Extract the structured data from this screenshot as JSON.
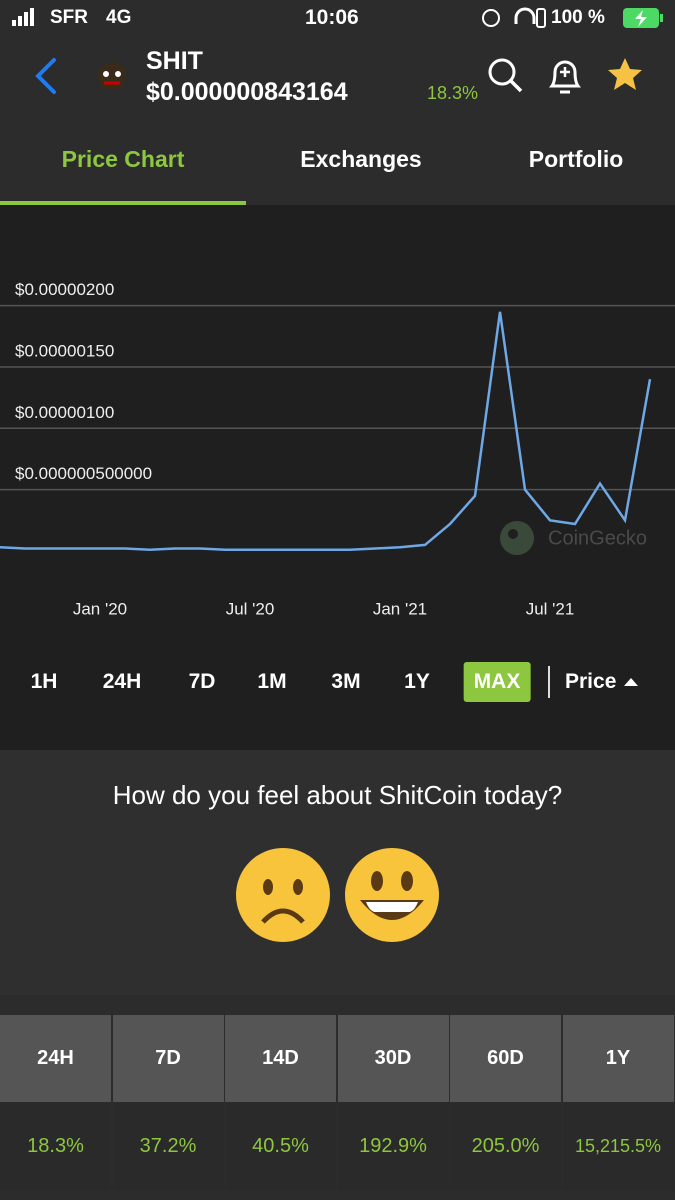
{
  "status_bar": {
    "carrier": "SFR",
    "network": "4G",
    "time": "10:06",
    "battery": "100 %"
  },
  "header": {
    "symbol": "SHIT",
    "price": "$0.000000843164",
    "change": "18.3%"
  },
  "tabs": [
    "Price Chart",
    "Exchanges",
    "Portfolio"
  ],
  "chart_data": {
    "type": "line",
    "x": [
      "2019-09",
      "2019-10",
      "2019-11",
      "2019-12",
      "2020-01",
      "2020-02",
      "2020-03",
      "2020-04",
      "2020-05",
      "2020-06",
      "2020-07",
      "2020-08",
      "2020-09",
      "2020-10",
      "2020-11",
      "2020-12",
      "2021-01",
      "2021-02",
      "2021-03",
      "2021-04",
      "2021-05",
      "2021-06",
      "2021-07",
      "2021-08",
      "2021-09",
      "2021-10",
      "2021-11"
    ],
    "values": [
      3e-08,
      2e-08,
      2e-08,
      2e-08,
      2e-08,
      2e-08,
      1e-08,
      2e-08,
      2e-08,
      1e-08,
      1e-08,
      1e-08,
      1e-08,
      1e-08,
      1e-08,
      2e-08,
      3e-08,
      5e-08,
      2.2e-07,
      4.5e-07,
      1.95e-06,
      5e-07,
      2.5e-07,
      2.2e-07,
      5.5e-07,
      2.5e-07,
      1.4e-06
    ],
    "color": "#6ea8e6",
    "xlim": [
      "2019-09",
      "2021-12"
    ],
    "xticks": [
      {
        "value": "2020-01",
        "label": "Jan '20"
      },
      {
        "value": "2020-07",
        "label": "Jul '20"
      },
      {
        "value": "2021-01",
        "label": "Jan '21"
      },
      {
        "value": "2021-07",
        "label": "Jul '21"
      }
    ],
    "ylim": [
      0,
      2.6e-06
    ],
    "yticks": [
      {
        "value": 5e-07,
        "label": "$0.000000500000"
      },
      {
        "value": 1e-06,
        "label": "$0.00000100"
      },
      {
        "value": 1.5e-06,
        "label": "$0.00000150"
      },
      {
        "value": 2e-06,
        "label": "$0.00000200"
      }
    ],
    "grid": true,
    "watermark": "CoinGecko"
  },
  "ranges": {
    "options": [
      "1H",
      "24H",
      "7D",
      "1M",
      "3M",
      "1Y",
      "MAX"
    ],
    "active": "MAX",
    "metric": "Price"
  },
  "sentiment": {
    "question": "How do you feel about ShitCoin today?"
  },
  "table": {
    "headers": [
      "24H",
      "7D",
      "14D",
      "30D",
      "60D",
      "1Y"
    ],
    "rows": [
      [
        "18.3%",
        "37.2%",
        "40.5%",
        "192.9%",
        "205.0%",
        "15,215.5%"
      ]
    ]
  }
}
